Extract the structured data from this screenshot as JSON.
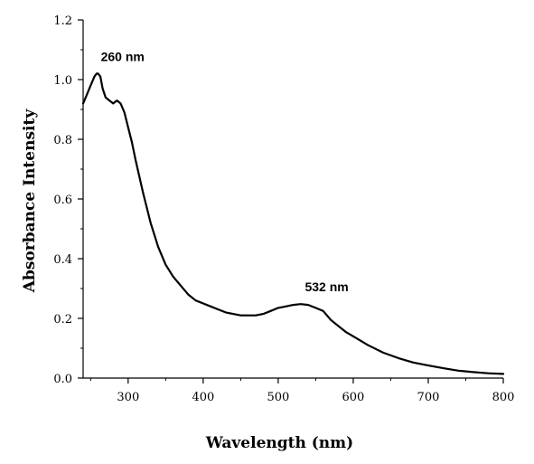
{
  "chart_data": {
    "type": "line",
    "xlabel": "Wavelength (nm)",
    "ylabel": "Absorbance Intensity",
    "xlim": [
      240,
      800
    ],
    "ylim": [
      0.0,
      1.2
    ],
    "x_ticks": [
      300,
      400,
      500,
      600,
      700,
      800
    ],
    "y_ticks": [
      0.0,
      0.2,
      0.4,
      0.6,
      0.8,
      1.0,
      1.2
    ],
    "x_tick_labels": [
      "300",
      "400",
      "500",
      "600",
      "700",
      "800"
    ],
    "y_tick_labels": [
      "0.0",
      "0.2",
      "0.4",
      "0.6",
      "0.8",
      "1.0",
      "1.2"
    ],
    "grid": false,
    "legend": "none",
    "line_color": "#000000",
    "series": [
      {
        "x": [
          240,
          245,
          250,
          255,
          258,
          260,
          263,
          266,
          270,
          275,
          280,
          285,
          290,
          295,
          300,
          305,
          310,
          320,
          330,
          340,
          350,
          360,
          370,
          380,
          390,
          400,
          410,
          420,
          430,
          440,
          450,
          460,
          470,
          480,
          490,
          500,
          510,
          520,
          530,
          540,
          550,
          560,
          570,
          580,
          590,
          600,
          620,
          640,
          660,
          680,
          700,
          720,
          740,
          760,
          780,
          800
        ],
        "y": [
          0.92,
          0.95,
          0.98,
          1.01,
          1.02,
          1.02,
          1.01,
          0.97,
          0.94,
          0.93,
          0.92,
          0.93,
          0.92,
          0.89,
          0.84,
          0.79,
          0.73,
          0.62,
          0.52,
          0.44,
          0.38,
          0.34,
          0.31,
          0.28,
          0.26,
          0.25,
          0.24,
          0.23,
          0.22,
          0.215,
          0.21,
          0.21,
          0.21,
          0.215,
          0.225,
          0.235,
          0.24,
          0.245,
          0.248,
          0.245,
          0.235,
          0.225,
          0.195,
          0.175,
          0.155,
          0.14,
          0.11,
          0.085,
          0.067,
          0.052,
          0.042,
          0.033,
          0.025,
          0.02,
          0.016,
          0.014
        ]
      }
    ],
    "annotations": [
      {
        "text": "260 nm",
        "x": 260,
        "y": 1.02
      },
      {
        "text": "532 nm",
        "x": 532,
        "y": 0.248
      }
    ]
  }
}
